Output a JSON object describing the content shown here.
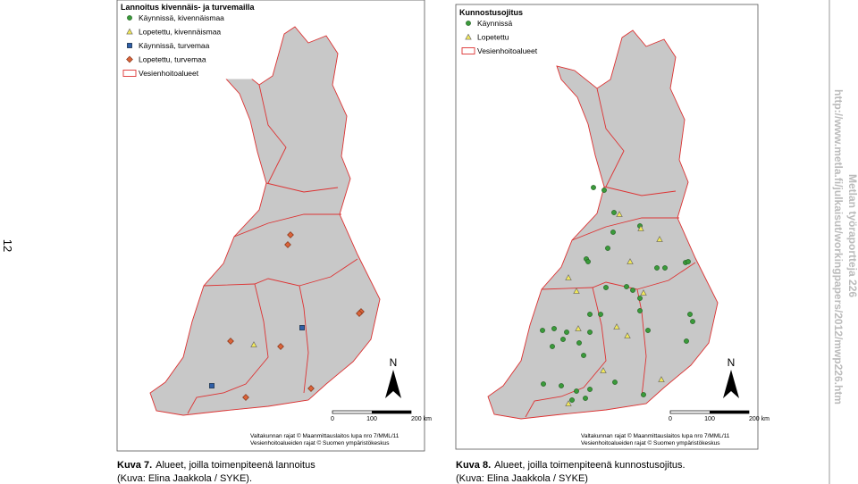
{
  "page_number": "12",
  "side_text": {
    "series": "Metlan työraportteja 226",
    "url": "http://www.metla.fi/julkaisut/workingpapers/2012/mwp226.htm"
  },
  "figures": [
    {
      "legend": {
        "title": "Lannoitus kivennäis- ja turvemailla",
        "items": [
          "Käynnissä, kivennäismaa",
          "Lopetettu, kivennäismaa",
          "Käynnissä, turvemaa",
          "Lopetettu, turvemaa",
          "Vesienhoitoalueet"
        ]
      },
      "north": "N",
      "scale": [
        "0",
        "100",
        "200 km"
      ],
      "credits": [
        "Valtakunnan rajat © Maanmittauslaitos lupa nro 7/MML/11",
        "Vesienhoitoalueiden rajat © Suomen ympäristökeskus"
      ],
      "caption": {
        "label": "Kuva 7.",
        "lines": [
          "Alueet, joilla toimenpiteenä lannoitus",
          "(Kuva: Elina Jaakkola / SYKE)."
        ]
      }
    },
    {
      "legend": {
        "title": "Kunnostusojitus",
        "items": [
          "Käynnissä",
          "Lopetettu",
          "Vesienhoitoalueet"
        ]
      },
      "north": "N",
      "scale": [
        "0",
        "100",
        "200 km"
      ],
      "credits": [
        "Valtakunnan rajat © Maanmittauslaitos lupa nro 7/MML/11",
        "Vesienhoitoalueiden rajat © Suomen ympäristökeskus"
      ],
      "caption": {
        "label": "Kuva 8.",
        "lines": [
          "Alueet, joilla toimenpiteenä kunnostusojitus.",
          "(Kuva: Elina Jaakkola / SYKE)"
        ]
      }
    }
  ]
}
